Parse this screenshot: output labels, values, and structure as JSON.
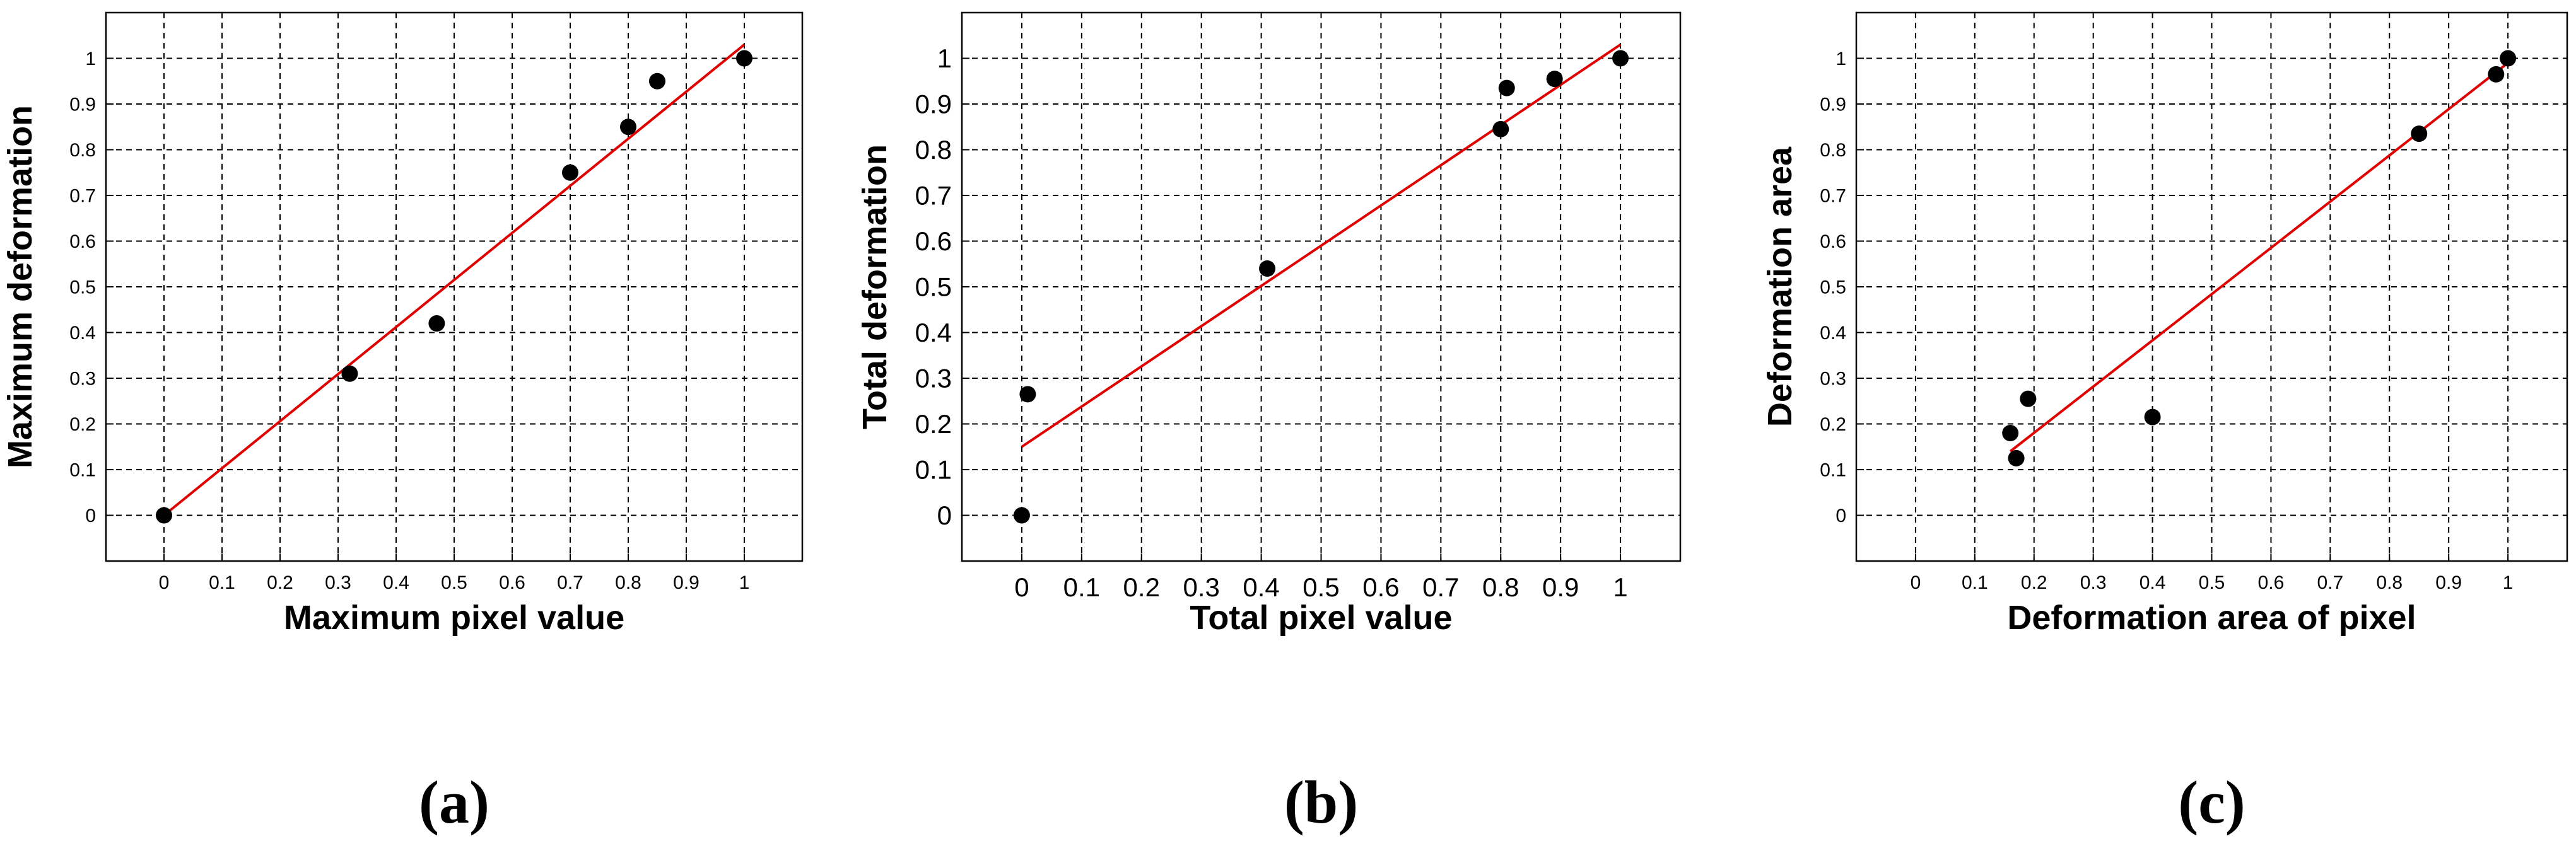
{
  "chart_data": [
    {
      "type": "scatter",
      "panel_label": "(a)",
      "xlabel": "Maximum pixel value",
      "ylabel": "Maximum deformation",
      "xlim": [
        -0.1,
        1.1
      ],
      "ylim": [
        -0.1,
        1.1
      ],
      "xticks": [
        "0",
        "0.1",
        "0.2",
        "0.3",
        "0.4",
        "0.5",
        "0.6",
        "0.7",
        "0.8",
        "0.9",
        "1"
      ],
      "yticks": [
        "0",
        "0.1",
        "0.2",
        "0.3",
        "0.4",
        "0.5",
        "0.6",
        "0.7",
        "0.8",
        "0.9",
        "1"
      ],
      "grid": true,
      "points": [
        [
          0,
          0
        ],
        [
          0.32,
          0.31
        ],
        [
          0.47,
          0.42
        ],
        [
          0.7,
          0.75
        ],
        [
          0.8,
          0.85
        ],
        [
          0.85,
          0.95
        ],
        [
          1,
          1
        ]
      ],
      "fit_line": [
        [
          0,
          0
        ],
        [
          1,
          1.03
        ]
      ],
      "colors": {
        "points": "#000000",
        "fit": "#e00000",
        "grid": "#000000"
      }
    },
    {
      "type": "scatter",
      "panel_label": "(b)",
      "xlabel": "Total pixel value",
      "ylabel": "Total deformation",
      "xlim": [
        -0.1,
        1.1
      ],
      "ylim": [
        -0.1,
        1.1
      ],
      "xticks": [
        "0",
        "0.1",
        "0.2",
        "0.3",
        "0.4",
        "0.5",
        "0.6",
        "0.7",
        "0.8",
        "0.9",
        "1"
      ],
      "yticks": [
        "0",
        "0.1",
        "0.2",
        "0.3",
        "0.4",
        "0.5",
        "0.6",
        "0.7",
        "0.8",
        "0.9",
        "1"
      ],
      "grid": true,
      "points": [
        [
          0,
          0
        ],
        [
          0.01,
          0.265
        ],
        [
          0.41,
          0.54
        ],
        [
          0.8,
          0.845
        ],
        [
          0.81,
          0.935
        ],
        [
          0.89,
          0.955
        ],
        [
          1,
          1
        ]
      ],
      "fit_line": [
        [
          0,
          0.15
        ],
        [
          1,
          1.03
        ]
      ],
      "colors": {
        "points": "#000000",
        "fit": "#e00000",
        "grid": "#000000"
      }
    },
    {
      "type": "scatter",
      "panel_label": "(c)",
      "xlabel": "Deformation area of pixel",
      "ylabel": "Deformation area",
      "xlim": [
        -0.1,
        1.1
      ],
      "ylim": [
        -0.1,
        1.1
      ],
      "xticks": [
        "0",
        "0.1",
        "0.2",
        "0.3",
        "0.4",
        "0.5",
        "0.6",
        "0.7",
        "0.8",
        "0.9",
        "1"
      ],
      "yticks": [
        "0",
        "0.1",
        "0.2",
        "0.3",
        "0.4",
        "0.5",
        "0.6",
        "0.7",
        "0.8",
        "0.9",
        "1"
      ],
      "grid": true,
      "points": [
        [
          0.16,
          0.18
        ],
        [
          0.17,
          0.125
        ],
        [
          0.19,
          0.255
        ],
        [
          0.4,
          0.215
        ],
        [
          0.85,
          0.835
        ],
        [
          0.98,
          0.965
        ],
        [
          1,
          1
        ]
      ],
      "fit_line": [
        [
          0.16,
          0.14
        ],
        [
          1,
          0.99
        ]
      ],
      "colors": {
        "points": "#000000",
        "fit": "#e00000",
        "grid": "#000000"
      }
    }
  ]
}
